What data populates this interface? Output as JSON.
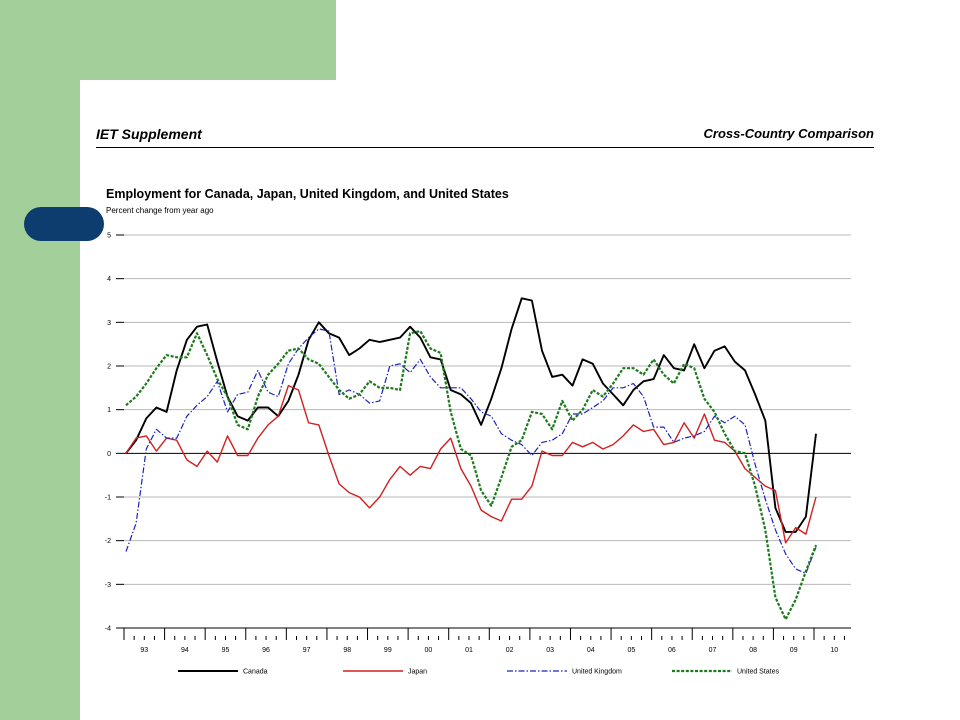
{
  "header": {
    "left": "IET Supplement",
    "right": "Cross-Country Comparison"
  },
  "colors": {
    "background_green": "#a3cf9b",
    "tab_navy": "#0c3d6e",
    "canada": "#000000",
    "japan": "#d12020",
    "united_kingdom": "#1a24b8",
    "united_states": "#1d7a1d"
  },
  "chart_data": {
    "type": "line",
    "title": "Employment for Canada, Japan, United Kingdom, and United States",
    "subtitle": "Percent change from year ago",
    "ylim": [
      -4,
      5
    ],
    "yticks": [
      "5",
      "4",
      "3",
      "2",
      "1",
      "0",
      "-1",
      "-2",
      "-3",
      "-4"
    ],
    "xlim": [
      1993.0,
      2010.0
    ],
    "year_labels": [
      "93",
      "94",
      "95",
      "96",
      "97",
      "98",
      "99",
      "00",
      "01",
      "02",
      "03",
      "04",
      "05",
      "06",
      "07",
      "08",
      "09",
      "10"
    ],
    "grid": true,
    "legend_position": "bottom",
    "series": [
      {
        "name": "Canada",
        "style": "solid",
        "points": [
          [
            1993.0,
            0.0
          ],
          [
            1993.25,
            0.3
          ],
          [
            1993.5,
            0.8
          ],
          [
            1993.75,
            1.05
          ],
          [
            1994.0,
            0.95
          ],
          [
            1994.25,
            1.9
          ],
          [
            1994.5,
            2.6
          ],
          [
            1994.75,
            2.9
          ],
          [
            1995.0,
            2.95
          ],
          [
            1995.25,
            2.1
          ],
          [
            1995.5,
            1.3
          ],
          [
            1995.75,
            0.85
          ],
          [
            1996.0,
            0.75
          ],
          [
            1996.25,
            1.05
          ],
          [
            1996.5,
            1.05
          ],
          [
            1996.75,
            0.85
          ],
          [
            1997.0,
            1.2
          ],
          [
            1997.25,
            1.8
          ],
          [
            1997.5,
            2.6
          ],
          [
            1997.75,
            3.0
          ],
          [
            1998.0,
            2.75
          ],
          [
            1998.25,
            2.65
          ],
          [
            1998.5,
            2.25
          ],
          [
            1998.75,
            2.4
          ],
          [
            1999.0,
            2.6
          ],
          [
            1999.25,
            2.55
          ],
          [
            1999.5,
            2.6
          ],
          [
            1999.75,
            2.65
          ],
          [
            2000.0,
            2.9
          ],
          [
            2000.25,
            2.65
          ],
          [
            2000.5,
            2.2
          ],
          [
            2000.75,
            2.15
          ],
          [
            2001.0,
            1.45
          ],
          [
            2001.25,
            1.35
          ],
          [
            2001.5,
            1.15
          ],
          [
            2001.75,
            0.65
          ],
          [
            2002.0,
            1.25
          ],
          [
            2002.25,
            1.95
          ],
          [
            2002.5,
            2.85
          ],
          [
            2002.75,
            3.55
          ],
          [
            2003.0,
            3.5
          ],
          [
            2003.25,
            2.35
          ],
          [
            2003.5,
            1.75
          ],
          [
            2003.75,
            1.8
          ],
          [
            2004.0,
            1.55
          ],
          [
            2004.25,
            2.15
          ],
          [
            2004.5,
            2.05
          ],
          [
            2004.75,
            1.6
          ],
          [
            2005.0,
            1.35
          ],
          [
            2005.25,
            1.1
          ],
          [
            2005.5,
            1.45
          ],
          [
            2005.75,
            1.65
          ],
          [
            2006.0,
            1.7
          ],
          [
            2006.25,
            2.25
          ],
          [
            2006.5,
            1.95
          ],
          [
            2006.75,
            1.9
          ],
          [
            2007.0,
            2.5
          ],
          [
            2007.25,
            1.95
          ],
          [
            2007.5,
            2.35
          ],
          [
            2007.75,
            2.45
          ],
          [
            2008.0,
            2.1
          ],
          [
            2008.25,
            1.9
          ],
          [
            2008.5,
            1.35
          ],
          [
            2008.75,
            0.75
          ],
          [
            2009.0,
            -1.25
          ],
          [
            2009.25,
            -1.8
          ],
          [
            2009.5,
            -1.8
          ],
          [
            2009.75,
            -1.45
          ],
          [
            2010.0,
            0.45
          ]
        ]
      },
      {
        "name": "Japan",
        "style": "solid",
        "points": [
          [
            1993.0,
            0.0
          ],
          [
            1993.25,
            0.35
          ],
          [
            1993.5,
            0.4
          ],
          [
            1993.75,
            0.05
          ],
          [
            1994.0,
            0.35
          ],
          [
            1994.25,
            0.3
          ],
          [
            1994.5,
            -0.15
          ],
          [
            1994.75,
            -0.3
          ],
          [
            1995.0,
            0.05
          ],
          [
            1995.25,
            -0.2
          ],
          [
            1995.5,
            0.4
          ],
          [
            1995.75,
            -0.05
          ],
          [
            1996.0,
            -0.05
          ],
          [
            1996.25,
            0.35
          ],
          [
            1996.5,
            0.65
          ],
          [
            1996.75,
            0.85
          ],
          [
            1997.0,
            1.55
          ],
          [
            1997.25,
            1.45
          ],
          [
            1997.5,
            0.7
          ],
          [
            1997.75,
            0.65
          ],
          [
            1998.0,
            -0.05
          ],
          [
            1998.25,
            -0.7
          ],
          [
            1998.5,
            -0.9
          ],
          [
            1998.75,
            -1.0
          ],
          [
            1999.0,
            -1.25
          ],
          [
            1999.25,
            -1.0
          ],
          [
            1999.5,
            -0.6
          ],
          [
            1999.75,
            -0.3
          ],
          [
            2000.0,
            -0.5
          ],
          [
            2000.25,
            -0.3
          ],
          [
            2000.5,
            -0.35
          ],
          [
            2000.75,
            0.1
          ],
          [
            2001.0,
            0.35
          ],
          [
            2001.25,
            -0.35
          ],
          [
            2001.5,
            -0.75
          ],
          [
            2001.75,
            -1.3
          ],
          [
            2002.0,
            -1.45
          ],
          [
            2002.25,
            -1.55
          ],
          [
            2002.5,
            -1.05
          ],
          [
            2002.75,
            -1.05
          ],
          [
            2003.0,
            -0.75
          ],
          [
            2003.25,
            0.05
          ],
          [
            2003.5,
            -0.05
          ],
          [
            2003.75,
            -0.05
          ],
          [
            2004.0,
            0.25
          ],
          [
            2004.25,
            0.15
          ],
          [
            2004.5,
            0.25
          ],
          [
            2004.75,
            0.1
          ],
          [
            2005.0,
            0.2
          ],
          [
            2005.25,
            0.4
          ],
          [
            2005.5,
            0.65
          ],
          [
            2005.75,
            0.5
          ],
          [
            2006.0,
            0.55
          ],
          [
            2006.25,
            0.2
          ],
          [
            2006.5,
            0.25
          ],
          [
            2006.75,
            0.7
          ],
          [
            2007.0,
            0.35
          ],
          [
            2007.25,
            0.9
          ],
          [
            2007.5,
            0.3
          ],
          [
            2007.75,
            0.25
          ],
          [
            2008.0,
            0.05
          ],
          [
            2008.25,
            -0.35
          ],
          [
            2008.5,
            -0.55
          ],
          [
            2008.75,
            -0.75
          ],
          [
            2009.0,
            -0.85
          ],
          [
            2009.25,
            -2.05
          ],
          [
            2009.5,
            -1.7
          ],
          [
            2009.75,
            -1.85
          ],
          [
            2010.0,
            -1.0
          ]
        ]
      },
      {
        "name": "United Kingdom",
        "style": "dashed",
        "points": [
          [
            1993.0,
            -2.25
          ],
          [
            1993.25,
            -1.6
          ],
          [
            1993.5,
            0.1
          ],
          [
            1993.75,
            0.55
          ],
          [
            1994.0,
            0.35
          ],
          [
            1994.25,
            0.35
          ],
          [
            1994.5,
            0.85
          ],
          [
            1994.75,
            1.1
          ],
          [
            1995.0,
            1.3
          ],
          [
            1995.25,
            1.65
          ],
          [
            1995.5,
            0.95
          ],
          [
            1995.75,
            1.35
          ],
          [
            1996.0,
            1.4
          ],
          [
            1996.25,
            1.9
          ],
          [
            1996.5,
            1.4
          ],
          [
            1996.75,
            1.3
          ],
          [
            1997.0,
            2.05
          ],
          [
            1997.25,
            2.4
          ],
          [
            1997.5,
            2.65
          ],
          [
            1997.75,
            2.85
          ],
          [
            1998.0,
            2.8
          ],
          [
            1998.25,
            1.35
          ],
          [
            1998.5,
            1.45
          ],
          [
            1998.75,
            1.35
          ],
          [
            1999.0,
            1.15
          ],
          [
            1999.25,
            1.2
          ],
          [
            1999.5,
            2.0
          ],
          [
            1999.75,
            2.05
          ],
          [
            2000.0,
            1.85
          ],
          [
            2000.25,
            2.15
          ],
          [
            2000.5,
            1.75
          ],
          [
            2000.75,
            1.5
          ],
          [
            2001.0,
            1.5
          ],
          [
            2001.25,
            1.5
          ],
          [
            2001.5,
            1.25
          ],
          [
            2001.75,
            0.95
          ],
          [
            2002.0,
            0.85
          ],
          [
            2002.25,
            0.45
          ],
          [
            2002.5,
            0.3
          ],
          [
            2002.75,
            0.2
          ],
          [
            2003.0,
            -0.05
          ],
          [
            2003.25,
            0.25
          ],
          [
            2003.5,
            0.3
          ],
          [
            2003.75,
            0.45
          ],
          [
            2004.0,
            0.9
          ],
          [
            2004.25,
            0.9
          ],
          [
            2004.5,
            1.05
          ],
          [
            2004.75,
            1.2
          ],
          [
            2005.0,
            1.5
          ],
          [
            2005.25,
            1.5
          ],
          [
            2005.5,
            1.6
          ],
          [
            2005.75,
            1.3
          ],
          [
            2006.0,
            0.6
          ],
          [
            2006.25,
            0.6
          ],
          [
            2006.5,
            0.25
          ],
          [
            2006.75,
            0.35
          ],
          [
            2007.0,
            0.4
          ],
          [
            2007.25,
            0.5
          ],
          [
            2007.5,
            0.85
          ],
          [
            2007.75,
            0.7
          ],
          [
            2008.0,
            0.85
          ],
          [
            2008.25,
            0.65
          ],
          [
            2008.5,
            -0.25
          ],
          [
            2008.75,
            -1.05
          ],
          [
            2009.0,
            -1.75
          ],
          [
            2009.25,
            -2.3
          ],
          [
            2009.5,
            -2.65
          ],
          [
            2009.75,
            -2.75
          ],
          [
            2010.0,
            -2.15
          ]
        ]
      },
      {
        "name": "United States",
        "style": "dotted",
        "points": [
          [
            1993.0,
            1.1
          ],
          [
            1993.25,
            1.3
          ],
          [
            1993.5,
            1.6
          ],
          [
            1993.75,
            1.95
          ],
          [
            1994.0,
            2.25
          ],
          [
            1994.25,
            2.2
          ],
          [
            1994.5,
            2.2
          ],
          [
            1994.75,
            2.75
          ],
          [
            1995.0,
            2.25
          ],
          [
            1995.25,
            1.7
          ],
          [
            1995.5,
            1.3
          ],
          [
            1995.75,
            0.65
          ],
          [
            1996.0,
            0.55
          ],
          [
            1996.25,
            1.3
          ],
          [
            1996.5,
            1.8
          ],
          [
            1996.75,
            2.05
          ],
          [
            1997.0,
            2.35
          ],
          [
            1997.25,
            2.4
          ],
          [
            1997.5,
            2.15
          ],
          [
            1997.75,
            2.05
          ],
          [
            1998.0,
            1.75
          ],
          [
            1998.25,
            1.45
          ],
          [
            1998.5,
            1.25
          ],
          [
            1998.75,
            1.35
          ],
          [
            1999.0,
            1.65
          ],
          [
            1999.25,
            1.5
          ],
          [
            1999.5,
            1.5
          ],
          [
            1999.75,
            1.45
          ],
          [
            2000.0,
            2.75
          ],
          [
            2000.25,
            2.8
          ],
          [
            2000.5,
            2.4
          ],
          [
            2000.75,
            2.3
          ],
          [
            2001.0,
            0.95
          ],
          [
            2001.25,
            0.1
          ],
          [
            2001.5,
            -0.05
          ],
          [
            2001.75,
            -0.85
          ],
          [
            2002.0,
            -1.2
          ],
          [
            2002.25,
            -0.55
          ],
          [
            2002.5,
            0.15
          ],
          [
            2002.75,
            0.3
          ],
          [
            2003.0,
            0.95
          ],
          [
            2003.25,
            0.9
          ],
          [
            2003.5,
            0.55
          ],
          [
            2003.75,
            1.2
          ],
          [
            2004.0,
            0.75
          ],
          [
            2004.25,
            1.0
          ],
          [
            2004.5,
            1.45
          ],
          [
            2004.75,
            1.3
          ],
          [
            2005.0,
            1.6
          ],
          [
            2005.25,
            1.95
          ],
          [
            2005.5,
            1.95
          ],
          [
            2005.75,
            1.8
          ],
          [
            2006.0,
            2.15
          ],
          [
            2006.25,
            1.8
          ],
          [
            2006.5,
            1.6
          ],
          [
            2006.75,
            2.05
          ],
          [
            2007.0,
            1.95
          ],
          [
            2007.25,
            1.25
          ],
          [
            2007.5,
            0.95
          ],
          [
            2007.75,
            0.45
          ],
          [
            2008.0,
            0.05
          ],
          [
            2008.25,
            0.0
          ],
          [
            2008.5,
            -0.75
          ],
          [
            2008.75,
            -1.75
          ],
          [
            2009.0,
            -3.3
          ],
          [
            2009.25,
            -3.8
          ],
          [
            2009.5,
            -3.35
          ],
          [
            2009.75,
            -2.7
          ],
          [
            2010.0,
            -2.1
          ]
        ]
      }
    ]
  }
}
